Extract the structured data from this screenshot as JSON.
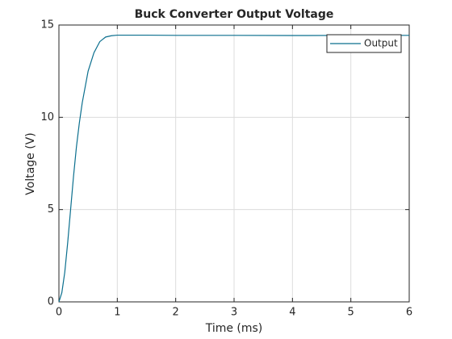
{
  "chart_data": {
    "type": "line",
    "title": "Buck Converter Output Voltage",
    "x_label": "Time (ms)",
    "y_label": "Voltage (V)",
    "x": [
      0,
      0.05,
      0.1,
      0.15,
      0.2,
      0.25,
      0.3,
      0.35,
      0.4,
      0.5,
      0.6,
      0.7,
      0.8,
      0.9,
      1,
      1.5,
      2,
      3,
      4,
      5,
      6
    ],
    "series": [
      {
        "name": "Output",
        "color": "#0b6f8e",
        "values": [
          0,
          0.5,
          1.6,
          3.2,
          5.0,
          6.8,
          8.4,
          9.7,
          10.8,
          12.5,
          13.5,
          14.1,
          14.35,
          14.42,
          14.45,
          14.45,
          14.44,
          14.44,
          14.43,
          14.44,
          14.44
        ]
      }
    ],
    "xlim": [
      0,
      6
    ],
    "xticks": [
      0,
      1,
      2,
      3,
      4,
      5,
      6
    ],
    "ylim": [
      0,
      15
    ],
    "yticks": [
      0,
      5,
      10,
      15
    ],
    "grid": true,
    "legend": "northeast"
  }
}
